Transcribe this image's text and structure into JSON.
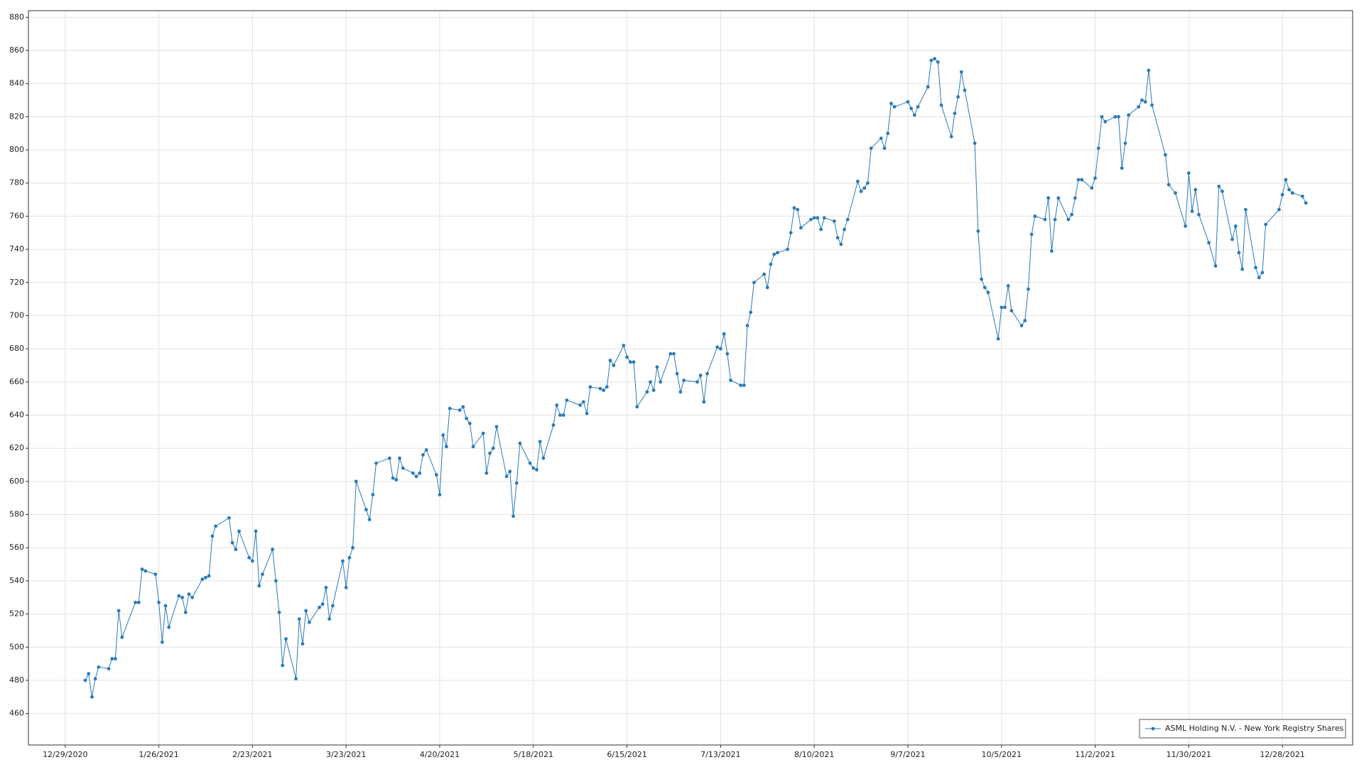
{
  "chart_data": {
    "type": "line",
    "series": [
      {
        "name": "ASML Holding N.V. - New York Registry Shares",
        "color": "#2a7ab8",
        "x": [
          "1/4/2021",
          "1/5/2021",
          "1/6/2021",
          "1/7/2021",
          "1/8/2021",
          "1/11/2021",
          "1/12/2021",
          "1/13/2021",
          "1/14/2021",
          "1/15/2021",
          "1/19/2021",
          "1/20/2021",
          "1/21/2021",
          "1/22/2021",
          "1/25/2021",
          "1/26/2021",
          "1/27/2021",
          "1/28/2021",
          "1/29/2021",
          "2/1/2021",
          "2/2/2021",
          "2/3/2021",
          "2/4/2021",
          "2/5/2021",
          "2/8/2021",
          "2/9/2021",
          "2/10/2021",
          "2/11/2021",
          "2/12/2021",
          "2/16/2021",
          "2/17/2021",
          "2/18/2021",
          "2/19/2021",
          "2/22/2021",
          "2/23/2021",
          "2/24/2021",
          "2/25/2021",
          "2/26/2021",
          "3/1/2021",
          "3/2/2021",
          "3/3/2021",
          "3/4/2021",
          "3/5/2021",
          "3/8/2021",
          "3/9/2021",
          "3/10/2021",
          "3/11/2021",
          "3/12/2021",
          "3/15/2021",
          "3/16/2021",
          "3/17/2021",
          "3/18/2021",
          "3/19/2021",
          "3/22/2021",
          "3/23/2021",
          "3/24/2021",
          "3/25/2021",
          "3/26/2021",
          "3/29/2021",
          "3/30/2021",
          "3/31/2021",
          "4/1/2021",
          "4/5/2021",
          "4/6/2021",
          "4/7/2021",
          "4/8/2021",
          "4/9/2021",
          "4/12/2021",
          "4/13/2021",
          "4/14/2021",
          "4/15/2021",
          "4/16/2021",
          "4/19/2021",
          "4/20/2021",
          "4/21/2021",
          "4/22/2021",
          "4/23/2021",
          "4/26/2021",
          "4/27/2021",
          "4/28/2021",
          "4/29/2021",
          "4/30/2021",
          "5/3/2021",
          "5/4/2021",
          "5/5/2021",
          "5/6/2021",
          "5/7/2021",
          "5/10/2021",
          "5/11/2021",
          "5/12/2021",
          "5/13/2021",
          "5/14/2021",
          "5/17/2021",
          "5/18/2021",
          "5/19/2021",
          "5/20/2021",
          "5/21/2021",
          "5/24/2021",
          "5/25/2021",
          "5/26/2021",
          "5/27/2021",
          "5/28/2021",
          "6/1/2021",
          "6/2/2021",
          "6/3/2021",
          "6/4/2021",
          "6/7/2021",
          "6/8/2021",
          "6/9/2021",
          "6/10/2021",
          "6/11/2021",
          "6/14/2021",
          "6/15/2021",
          "6/16/2021",
          "6/17/2021",
          "6/18/2021",
          "6/21/2021",
          "6/22/2021",
          "6/23/2021",
          "6/24/2021",
          "6/25/2021",
          "6/28/2021",
          "6/29/2021",
          "6/30/2021",
          "7/1/2021",
          "7/2/2021",
          "7/6/2021",
          "7/7/2021",
          "7/8/2021",
          "7/9/2021",
          "7/12/2021",
          "7/13/2021",
          "7/14/2021",
          "7/15/2021",
          "7/16/2021",
          "7/19/2021",
          "7/20/2021",
          "7/21/2021",
          "7/22/2021",
          "7/23/2021",
          "7/26/2021",
          "7/27/2021",
          "7/28/2021",
          "7/29/2021",
          "7/30/2021",
          "8/2/2021",
          "8/3/2021",
          "8/4/2021",
          "8/5/2021",
          "8/6/2021",
          "8/9/2021",
          "8/10/2021",
          "8/11/2021",
          "8/12/2021",
          "8/13/2021",
          "8/16/2021",
          "8/17/2021",
          "8/18/2021",
          "8/19/2021",
          "8/20/2021",
          "8/23/2021",
          "8/24/2021",
          "8/25/2021",
          "8/26/2021",
          "8/27/2021",
          "8/30/2021",
          "8/31/2021",
          "9/1/2021",
          "9/2/2021",
          "9/3/2021",
          "9/7/2021",
          "9/8/2021",
          "9/9/2021",
          "9/10/2021",
          "9/13/2021",
          "9/14/2021",
          "9/15/2021",
          "9/16/2021",
          "9/17/2021",
          "9/20/2021",
          "9/21/2021",
          "9/22/2021",
          "9/23/2021",
          "9/24/2021",
          "9/27/2021",
          "9/28/2021",
          "9/29/2021",
          "9/30/2021",
          "10/1/2021",
          "10/4/2021",
          "10/5/2021",
          "10/6/2021",
          "10/7/2021",
          "10/8/2021",
          "10/11/2021",
          "10/12/2021",
          "10/13/2021",
          "10/14/2021",
          "10/15/2021",
          "10/18/2021",
          "10/19/2021",
          "10/20/2021",
          "10/21/2021",
          "10/22/2021",
          "10/25/2021",
          "10/26/2021",
          "10/27/2021",
          "10/28/2021",
          "10/29/2021",
          "11/1/2021",
          "11/2/2021",
          "11/3/2021",
          "11/4/2021",
          "11/5/2021",
          "11/8/2021",
          "11/9/2021",
          "11/10/2021",
          "11/11/2021",
          "11/12/2021",
          "11/15/2021",
          "11/16/2021",
          "11/17/2021",
          "11/18/2021",
          "11/19/2021",
          "11/23/2021",
          "11/24/2021",
          "11/26/2021",
          "11/29/2021",
          "11/30/2021",
          "12/1/2021",
          "12/2/2021",
          "12/3/2021",
          "12/6/2021",
          "12/8/2021",
          "12/9/2021",
          "12/10/2021",
          "12/13/2021",
          "12/14/2021",
          "12/15/2021",
          "12/16/2021",
          "12/17/2021",
          "12/20/2021",
          "12/21/2021",
          "12/22/2021",
          "12/23/2021",
          "12/27/2021",
          "12/28/2021",
          "12/29/2021",
          "12/30/2021",
          "12/31/2021",
          "1/3/2022",
          "1/4/2022"
        ],
        "values": [
          480,
          484,
          470,
          481,
          488,
          487,
          493,
          493,
          522,
          506,
          527,
          527,
          547,
          546,
          544,
          527,
          503,
          525,
          512,
          531,
          530,
          521,
          532,
          530,
          541,
          542,
          543,
          567,
          573,
          578,
          563,
          559,
          570,
          554,
          552,
          570,
          537,
          544,
          559,
          540,
          521,
          489,
          505,
          481,
          517,
          502,
          522,
          515,
          524,
          526,
          536,
          517,
          525,
          552,
          536,
          554,
          560,
          600,
          583,
          577,
          592,
          611,
          614,
          602,
          601,
          614,
          608,
          605,
          603,
          605,
          616,
          619,
          604,
          592,
          628,
          621,
          644,
          643,
          645,
          638,
          635,
          621,
          629,
          605,
          617,
          620,
          633,
          603,
          606,
          579,
          599,
          623,
          611,
          608,
          607,
          624,
          614,
          634,
          646,
          640,
          640,
          649,
          646,
          648,
          641,
          657,
          656,
          655,
          657,
          673,
          670,
          682,
          675,
          672,
          672,
          645,
          654,
          660,
          655,
          669,
          660,
          677,
          677,
          665,
          654,
          661,
          660,
          664,
          648,
          665,
          681,
          680,
          689,
          677,
          661,
          658,
          658,
          694,
          702,
          720,
          725,
          717,
          731,
          737,
          738,
          740,
          750,
          765,
          764,
          753,
          758,
          759,
          759,
          752,
          759,
          757,
          747,
          743,
          752,
          758,
          781,
          775,
          777,
          780,
          801,
          807,
          801,
          810,
          828,
          826,
          829,
          825,
          821,
          826,
          838,
          854,
          855,
          853,
          827,
          808,
          822,
          832,
          847,
          836,
          804,
          751,
          722,
          717,
          714,
          686,
          705,
          705,
          718,
          703,
          694,
          697,
          716,
          749,
          760,
          758,
          771,
          739,
          758,
          771,
          758,
          761,
          771,
          782,
          782,
          777,
          783,
          801,
          820,
          817,
          820,
          820,
          789,
          804,
          821,
          826,
          830,
          829,
          848,
          827,
          797,
          779,
          774,
          754,
          786,
          763,
          776,
          761,
          744,
          730,
          778,
          775,
          746,
          754,
          738,
          728,
          764,
          729,
          723,
          726,
          755,
          764,
          773,
          782,
          776,
          774,
          772,
          768
        ]
      }
    ],
    "xlim": [
      "12/18/2020",
      "1/18/2022"
    ],
    "xticks": [
      "12/29/2020",
      "1/26/2021",
      "2/23/2021",
      "3/23/2021",
      "4/20/2021",
      "5/18/2021",
      "6/15/2021",
      "7/13/2021",
      "8/10/2021",
      "9/7/2021",
      "10/5/2021",
      "11/2/2021",
      "11/30/2021",
      "12/28/2021"
    ],
    "ylim": [
      441,
      884
    ],
    "yticks": [
      460,
      480,
      500,
      520,
      540,
      560,
      580,
      600,
      620,
      640,
      660,
      680,
      700,
      720,
      740,
      760,
      780,
      800,
      820,
      840,
      860,
      880
    ],
    "grid": true,
    "legend": "lower right"
  }
}
